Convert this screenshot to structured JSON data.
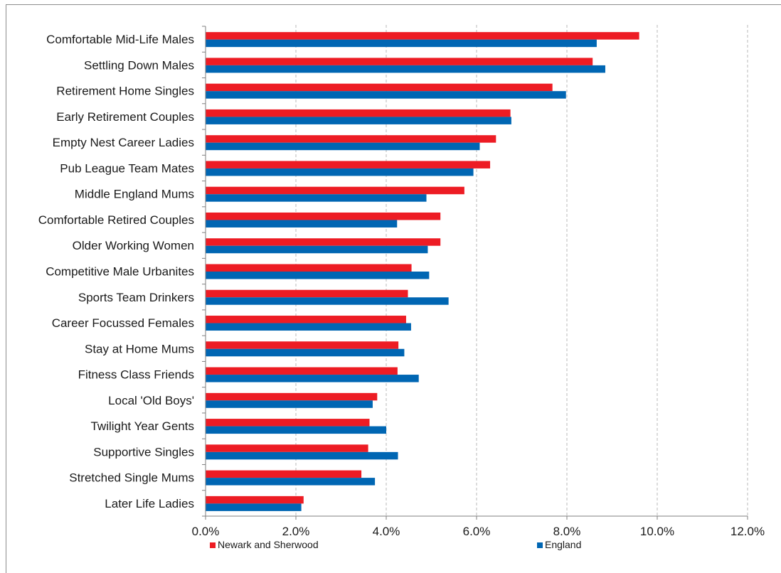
{
  "chart_data": {
    "type": "bar",
    "orientation": "horizontal",
    "title": "",
    "xlabel": "",
    "ylabel": "",
    "xlim": [
      0,
      12
    ],
    "x_ticks": [
      0,
      2,
      4,
      6,
      8,
      10,
      12
    ],
    "x_tick_labels": [
      "0.0%",
      "2.0%",
      "4.0%",
      "6.0%",
      "8.0%",
      "10.0%",
      "12.0%"
    ],
    "grid": "vertical dashed",
    "legend_position": "bottom",
    "categories": [
      "Comfortable Mid-Life Males",
      "Settling Down Males",
      "Retirement Home Singles",
      "Early Retirement Couples",
      "Empty Nest Career Ladies",
      "Pub League Team Mates",
      "Middle England Mums",
      "Comfortable Retired Couples",
      "Older Working Women",
      "Competitive Male Urbanites",
      "Sports Team Drinkers",
      "Career Focussed Females",
      "Stay at Home Mums",
      "Fitness Class Friends",
      "Local 'Old Boys'",
      "Twilight Year Gents",
      "Supportive Singles",
      "Stretched Single Mums",
      "Later Life Ladies"
    ],
    "series": [
      {
        "name": "Newark and Sherwood",
        "color": "#ed1c24",
        "values": [
          9.6,
          8.57,
          7.68,
          6.75,
          6.43,
          6.3,
          5.73,
          5.2,
          5.2,
          4.56,
          4.48,
          4.44,
          4.27,
          4.25,
          3.8,
          3.63,
          3.6,
          3.45,
          2.17
        ]
      },
      {
        "name": "England",
        "color": "#0066b3",
        "values": [
          8.66,
          8.85,
          7.98,
          6.77,
          6.07,
          5.93,
          4.89,
          4.24,
          4.92,
          4.95,
          5.38,
          4.55,
          4.4,
          4.72,
          3.7,
          4.0,
          4.26,
          3.75,
          2.12
        ]
      }
    ]
  }
}
